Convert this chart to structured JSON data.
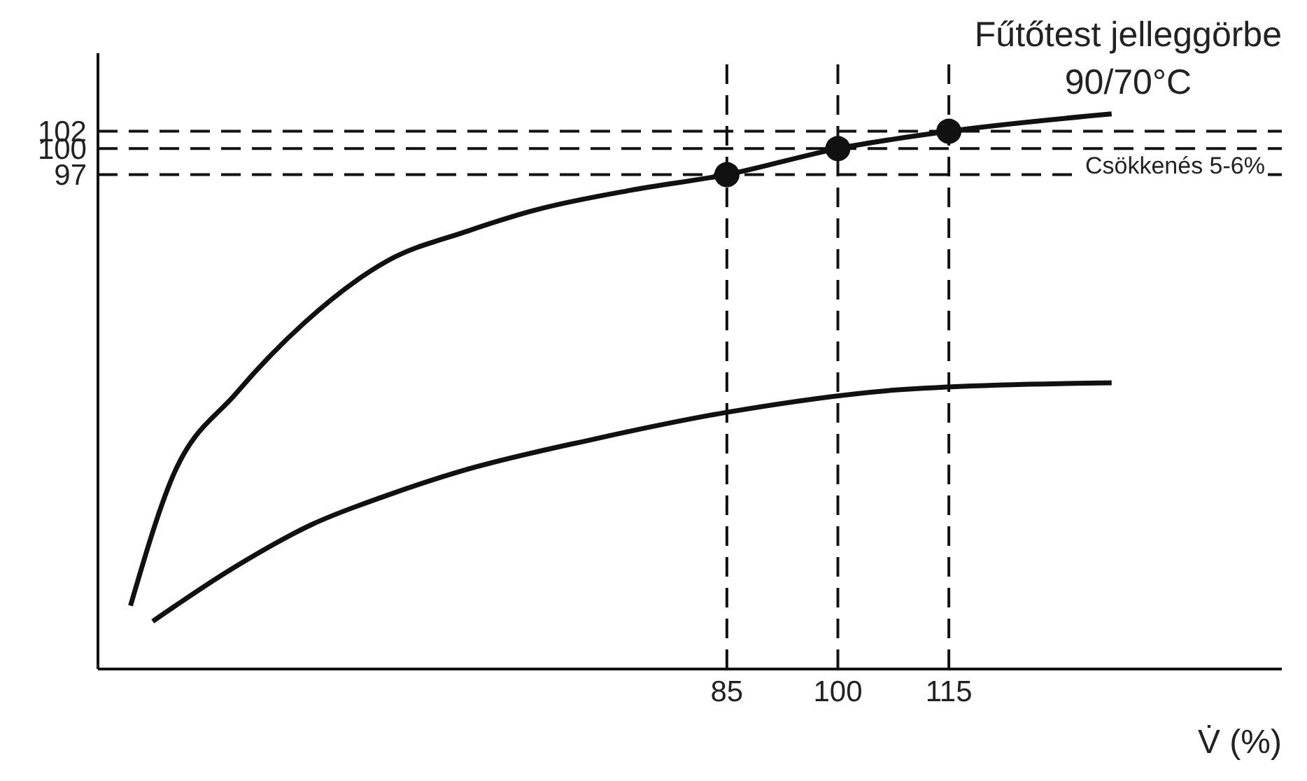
{
  "chart_data": {
    "type": "line",
    "title": "Fűtőtest jelleggörbe",
    "subtitle": "90/70°C",
    "xlabel": "V̇ (%)",
    "annotations": [
      "Csökkenés 5-6%"
    ],
    "xlim": [
      0,
      160
    ],
    "xticks": [
      85,
      100,
      115
    ],
    "ylim": [
      40,
      111
    ],
    "yticks": [
      97,
      100,
      102
    ],
    "grid": false,
    "legend": false,
    "marker": "none",
    "line_style": "solid",
    "series": [
      {
        "color": "#111111",
        "x": [
          4.4,
          10,
          18.7,
          28,
          39,
          50,
          59.5,
          72,
          85,
          100,
          115,
          137
        ],
        "values": [
          47.3,
          62,
          71.8,
          80,
          87,
          90.5,
          93,
          95.2,
          97,
          100,
          102,
          104
        ]
      },
      {
        "color": "#111111",
        "x": [
          7.4,
          18,
          29,
          39,
          49,
          67,
          85,
          110,
          137
        ],
        "values": [
          45.5,
          51.5,
          56.7,
          60,
          62.8,
          66.5,
          69.6,
          72.3,
          73
        ]
      },
      {
        "type": "scatter",
        "color": "#111111",
        "marker": "circle",
        "x": [
          85,
          100,
          115
        ],
        "values": [
          97,
          100,
          102
        ]
      }
    ],
    "ref_lines": [
      {
        "axis": "x",
        "value": 85,
        "color": "#111111",
        "line_style": "dashed"
      },
      {
        "axis": "x",
        "value": 100,
        "color": "#111111",
        "line_style": "dashed"
      },
      {
        "axis": "x",
        "value": 115,
        "color": "#111111",
        "line_style": "dashed"
      },
      {
        "axis": "y",
        "value": 97,
        "color": "#111111",
        "line_style": "dashed"
      },
      {
        "axis": "y",
        "value": 100,
        "color": "#111111",
        "line_style": "dashed"
      },
      {
        "axis": "y",
        "value": 102,
        "color": "#111111",
        "line_style": "dashed"
      }
    ]
  }
}
